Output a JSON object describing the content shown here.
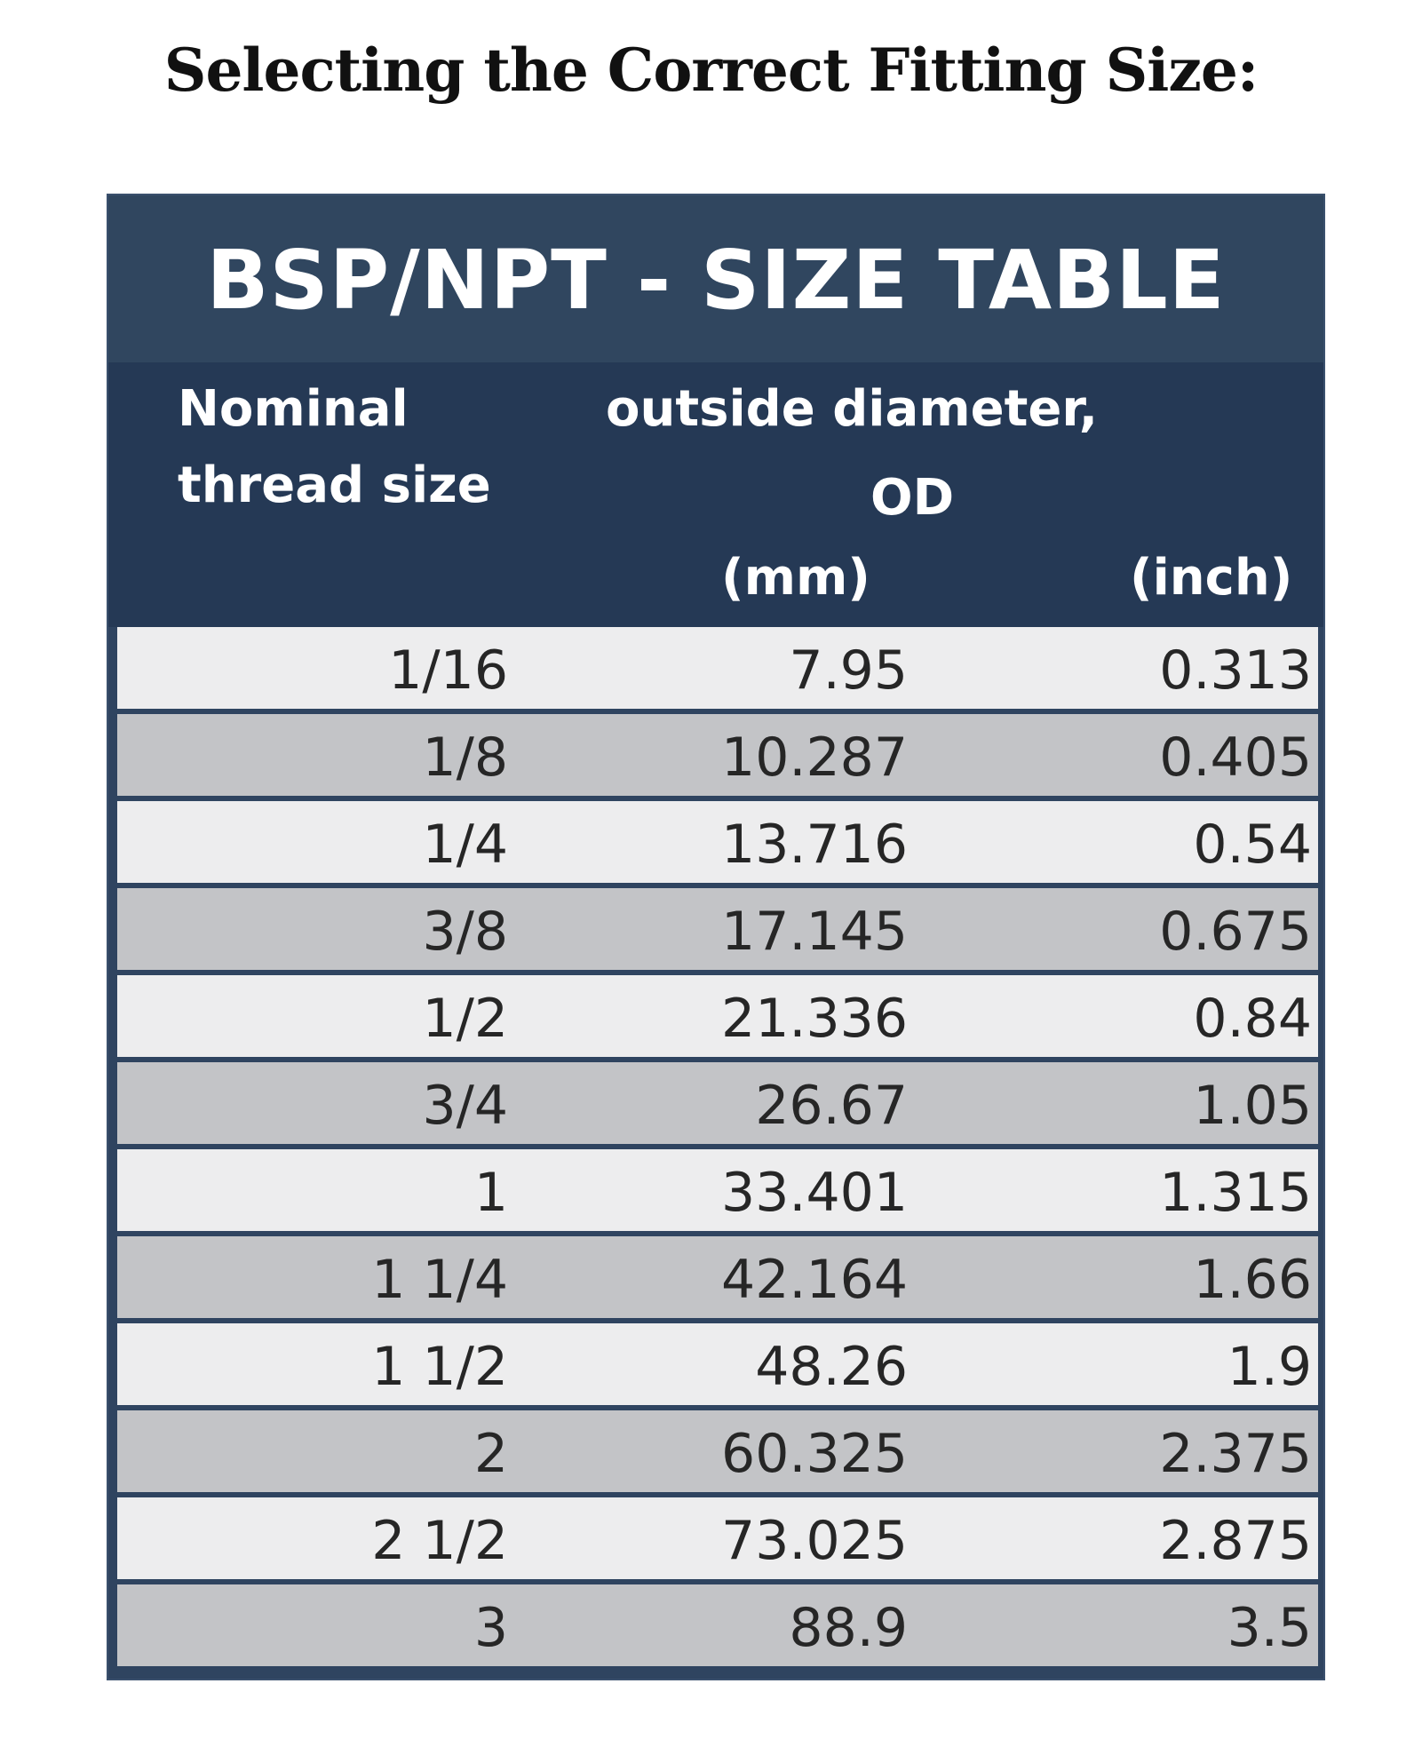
{
  "heading": "Selecting the Correct Fitting Size:",
  "table": {
    "title": "BSP/NPT - SIZE TABLE",
    "headers": {
      "nominal_line1": "Nominal",
      "nominal_line2": "thread size",
      "od_line1": "outside diameter,",
      "od_line2": "OD",
      "mm": "(mm)",
      "inch": "(inch)"
    },
    "row_shading": [
      "light",
      "dark"
    ],
    "colors": {
      "title_bar": "#30465f",
      "header_block": "#253955",
      "row_light": "#ededee",
      "row_dark": "#c3c4c7"
    },
    "rows": [
      {
        "size": "1/16",
        "mm": "7.95",
        "inch": "0.313"
      },
      {
        "size": "1/8",
        "mm": "10.287",
        "inch": "0.405"
      },
      {
        "size": "1/4",
        "mm": "13.716",
        "inch": "0.54"
      },
      {
        "size": "3/8",
        "mm": "17.145",
        "inch": "0.675"
      },
      {
        "size": "1/2",
        "mm": "21.336",
        "inch": "0.84"
      },
      {
        "size": "3/4",
        "mm": "26.67",
        "inch": "1.05"
      },
      {
        "size": "1",
        "mm": "33.401",
        "inch": "1.315"
      },
      {
        "size": "1 1/4",
        "mm": "42.164",
        "inch": "1.66"
      },
      {
        "size": "1 1/2",
        "mm": "48.26",
        "inch": "1.9"
      },
      {
        "size": "2",
        "mm": "60.325",
        "inch": "2.375"
      },
      {
        "size": "2 1/2",
        "mm": "73.025",
        "inch": "2.875"
      },
      {
        "size": "3",
        "mm": "88.9",
        "inch": "3.5"
      }
    ]
  }
}
